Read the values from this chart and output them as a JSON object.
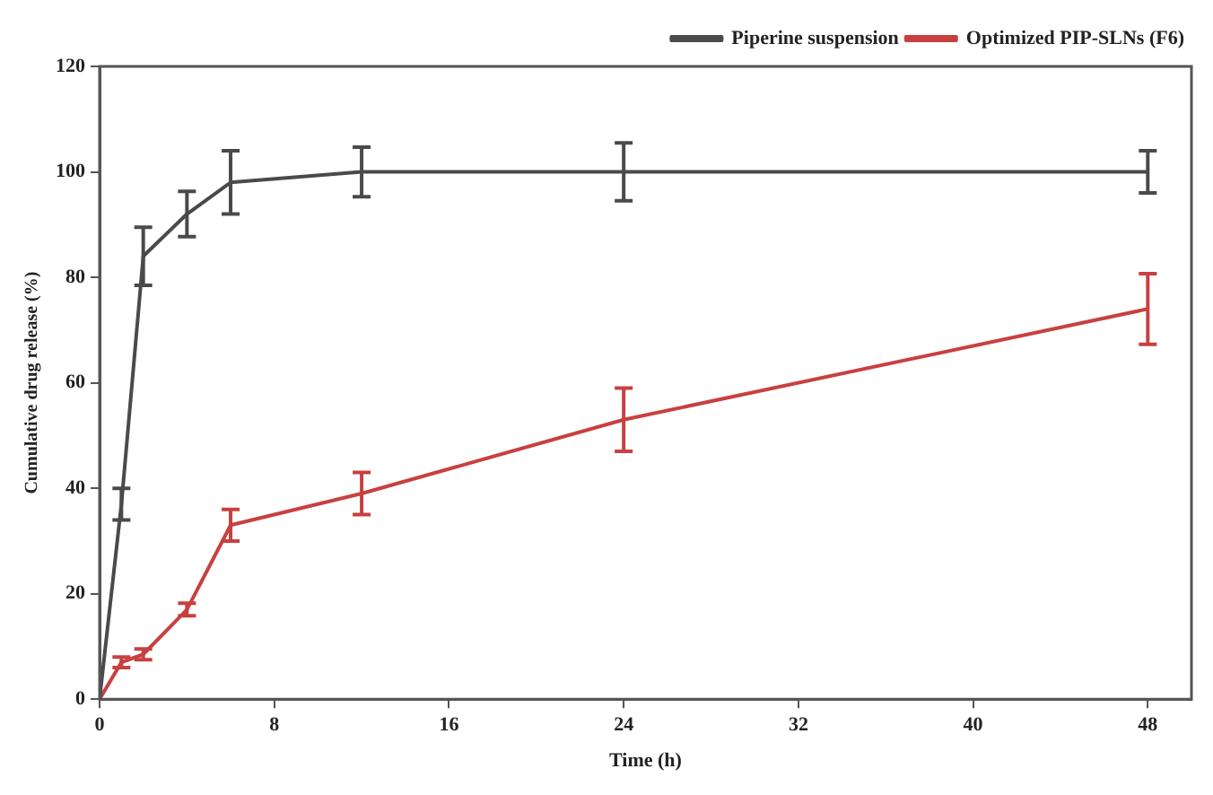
{
  "chart_data": {
    "type": "line",
    "xlabel": "Time (h)",
    "ylabel": "Cumulative drug release (%)",
    "x": [
      0,
      1,
      2,
      4,
      6,
      12,
      24,
      48
    ],
    "xlim": [
      0,
      50
    ],
    "xticks": [
      0,
      8,
      16,
      24,
      32,
      40,
      48
    ],
    "ylim": [
      0,
      120
    ],
    "yticks": [
      0,
      20,
      40,
      60,
      80,
      100,
      120
    ],
    "grid": false,
    "legend": "top right",
    "marker": "none",
    "series": [
      {
        "name": "Piperine suspension",
        "color": "#4a4a4a",
        "values": [
          0,
          37,
          84,
          92,
          98,
          100,
          100,
          100
        ],
        "errors": [
          null,
          3,
          5.5,
          4.3,
          6,
          4.7,
          5.5,
          4
        ]
      },
      {
        "name": "Optimized PIP-SLNs (F6)",
        "color": "#c84040",
        "values": [
          0,
          7,
          8.5,
          17,
          33,
          39,
          53,
          74
        ],
        "errors": [
          null,
          1,
          1,
          1.2,
          3,
          4,
          6,
          6.7
        ]
      }
    ]
  }
}
